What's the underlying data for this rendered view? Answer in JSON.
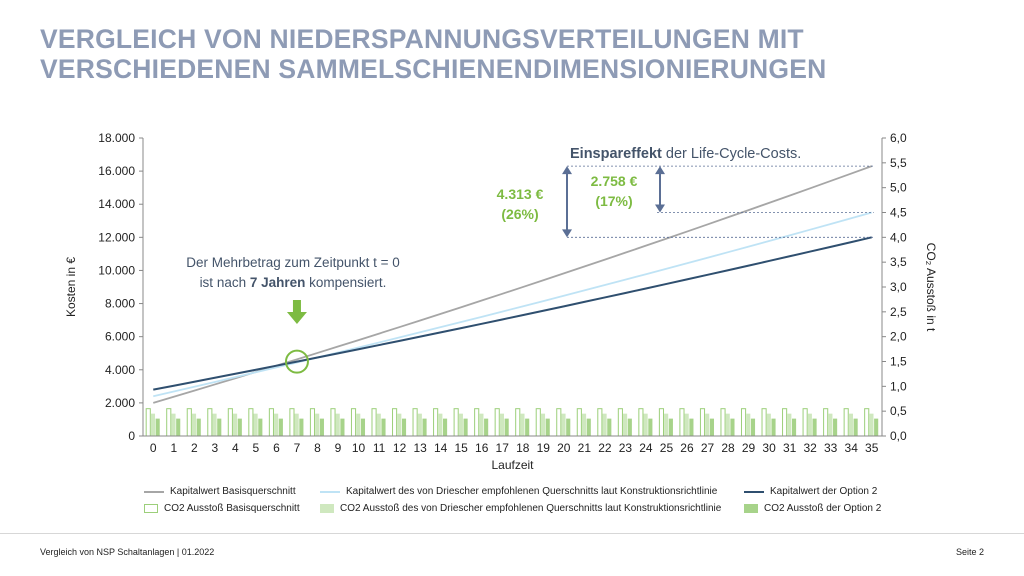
{
  "title": {
    "line1": "VERGLEICH VON NIEDERSPANNUNGSVERTEILUNGEN MIT",
    "line2": "VERSCHIEDENEN SAMMELSCHIENENDIMENSIONIERUNGEN"
  },
  "footer": {
    "left": "Vergleich von NSP Schaltanlagen | 01.2022",
    "right": "Seite 2"
  },
  "annotations": {
    "savings_bold": "Einspareffekt",
    "savings_rest": " der Life-Cycle-Costs.",
    "value1_amount": "4.313 €",
    "value1_pct": "(26%)",
    "value2_amount": "2.758 €",
    "value2_pct": "(17%)",
    "breakeven_line1": "Der Mehrbetrag zum Zeitpunkt t = 0",
    "breakeven_line2_pre": "ist nach ",
    "breakeven_line2_bold": "7 Jahren",
    "breakeven_line2_post": " kompensiert."
  },
  "colors": {
    "title": "#8e9bb5",
    "series_basis": "#a6a6a6",
    "series_driescher": "#bfe3f5",
    "series_option2": "#2f4f6f",
    "bar_basis_fill": "#ffffff",
    "bar_basis_stroke": "#9ccf7a",
    "bar_driescher": "#cfe8bf",
    "bar_option2": "#a7d38a",
    "accent_green": "#7dbb42",
    "arrow_blue": "#5b6f95"
  },
  "chart_data": {
    "type": "line",
    "xlabel": "Laufzeit",
    "ylabel": "Kosten in €",
    "y2label": "CO₂ Ausstoß in t",
    "ylim": [
      0,
      18000
    ],
    "y2lim": [
      0,
      6
    ],
    "yticks": [
      "0",
      "2.000",
      "4.000",
      "6.000",
      "8.000",
      "10.000",
      "12.000",
      "14.000",
      "16.000",
      "18.000"
    ],
    "y2ticks": [
      "0,0",
      "0,5",
      "1,0",
      "1,5",
      "2,0",
      "2,5",
      "3,0",
      "3,5",
      "4,0",
      "4,5",
      "5,0",
      "5,5",
      "6,0"
    ],
    "x": [
      0,
      1,
      2,
      3,
      4,
      5,
      6,
      7,
      8,
      9,
      10,
      11,
      12,
      13,
      14,
      15,
      16,
      17,
      18,
      19,
      20,
      21,
      22,
      23,
      24,
      25,
      26,
      27,
      28,
      29,
      30,
      31,
      32,
      33,
      34,
      35
    ],
    "series": [
      {
        "name": "Kapitalwert Basisquerschnitt",
        "axis": "left",
        "start": 2000,
        "end": 16300
      },
      {
        "name": "Kapitalwert des von Driescher empfohlenen Querschnitts laut Konstruktionsrichtlinie",
        "axis": "left",
        "start": 2400,
        "end": 13500
      },
      {
        "name": "Kapitalwert der Option 2",
        "axis": "left",
        "start": 2800,
        "end": 12000
      }
    ],
    "bar_series": [
      {
        "name": "CO2 Ausstoß Basisquerschnitt",
        "axis": "right",
        "value": 0.55
      },
      {
        "name": "CO2 Ausstoß des von Driescher empfohlenen Querschnitts laut Konstruktionsrichtlinie",
        "axis": "right",
        "value": 0.45
      },
      {
        "name": "CO2 Ausstoß der Option 2",
        "axis": "right",
        "value": 0.35
      }
    ],
    "reference_values": [
      16300,
      13500,
      12000
    ],
    "breakeven_year": 7,
    "legend_position": "bottom"
  }
}
